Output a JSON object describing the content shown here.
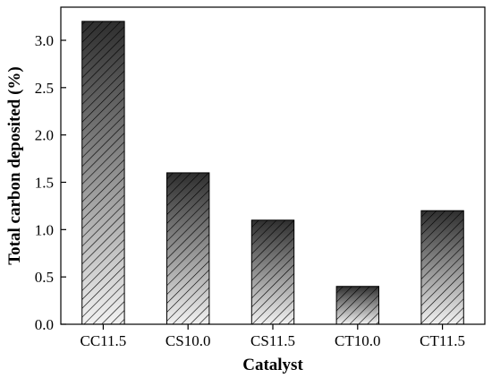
{
  "chart_data": {
    "type": "bar",
    "categories": [
      "CC11.5",
      "CS10.0",
      "CS11.5",
      "CT10.0",
      "CT11.5"
    ],
    "values": [
      3.2,
      1.6,
      1.1,
      0.4,
      1.2
    ],
    "title": "",
    "xlabel": "Catalyst",
    "ylabel": "Total carbon deposited (%)",
    "ylim": [
      0,
      3.35
    ],
    "yticks": [
      "0.0",
      "0.5",
      "1.0",
      "1.5",
      "2.0",
      "2.5",
      "3.0"
    ],
    "grid": false,
    "legend": "none",
    "bar_fill": "vertical gradient dark-to-light with diagonal hatching",
    "colors": {
      "bar_top": "#2e2e2e",
      "bar_bottom": "#f2f2f2",
      "hatch": "#000000",
      "axis": "#000000"
    }
  }
}
